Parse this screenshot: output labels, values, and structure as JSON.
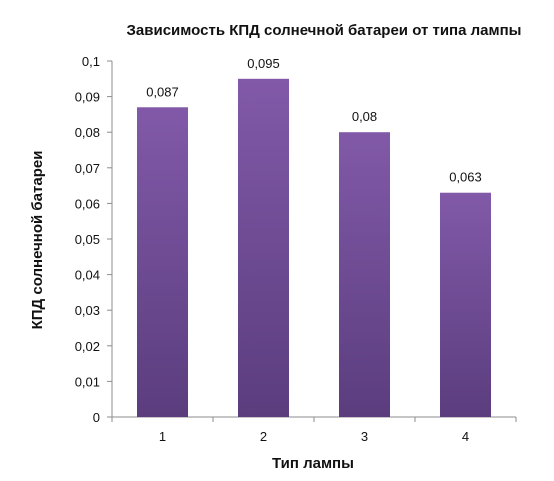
{
  "chart_data": {
    "type": "bar",
    "title": "Зависимость КПД солнечной батареи от типа лампы",
    "xlabel": "Тип лампы",
    "ylabel": "КПД солнечной батареи",
    "categories": [
      "1",
      "2",
      "3",
      "4"
    ],
    "values": [
      0.087,
      0.095,
      0.08,
      0.063
    ],
    "data_labels": [
      "0,087",
      "0,095",
      "0,08",
      "0,063"
    ],
    "ylim": [
      0,
      0.1
    ],
    "yticks": [
      0,
      0.01,
      0.02,
      0.03,
      0.04,
      0.05,
      0.06,
      0.07,
      0.08,
      0.09,
      0.1
    ],
    "ytick_labels": [
      "0",
      "0,01",
      "0,02",
      "0,03",
      "0,04",
      "0,05",
      "0,06",
      "0,07",
      "0,08",
      "0,09",
      "0,1"
    ],
    "grid": false,
    "legend": "none",
    "bar_color_top": "#8159a8",
    "bar_color_bottom": "#5b3d7e",
    "axis_color": "#8c8c8c"
  }
}
